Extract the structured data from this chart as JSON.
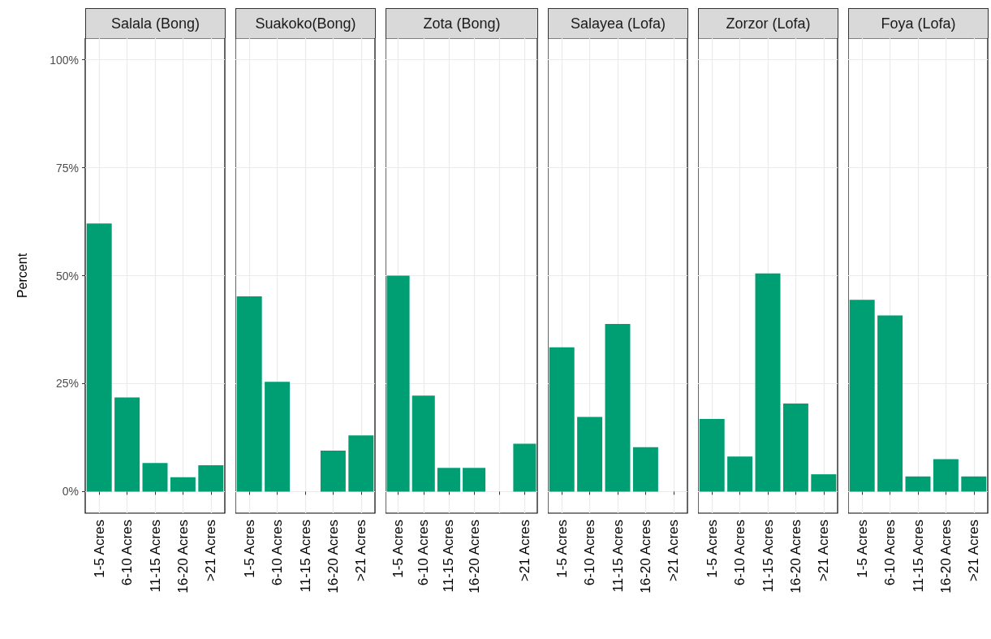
{
  "chart_data": [
    {
      "type": "bar",
      "title": "Salala (Bong)",
      "ylabel": "Percent",
      "categories": [
        "1-5 Acres",
        "6-10 Acres",
        "11-15 Acres",
        "16-20 Acres",
        ">21 Acres"
      ],
      "values": [
        62.1,
        21.8,
        6.6,
        3.3,
        6.1
      ],
      "color": "#009e73",
      "ylim": [
        -5,
        105
      ],
      "yticks": [
        {
          "value": 0,
          "label": "0%"
        },
        {
          "value": 25,
          "label": "25%"
        },
        {
          "value": 50,
          "label": "50%"
        },
        {
          "value": 75,
          "label": "75%"
        },
        {
          "value": 100,
          "label": "100%"
        }
      ],
      "grid": true
    },
    {
      "type": "bar",
      "title": "Suakoko(Bong)",
      "categories": [
        "1-5 Acres",
        "6-10 Acres",
        "11-15 Acres",
        "16-20 Acres",
        ">21 Acres"
      ],
      "values": [
        45.2,
        25.4,
        0,
        9.5,
        13.0
      ],
      "color": "#009e73",
      "ylim": [
        -5,
        105
      ],
      "yticks": [
        0,
        25,
        50,
        75,
        100
      ],
      "grid": true,
      "tick_labels": "x"
    },
    {
      "type": "bar",
      "title": "Zota (Bong)",
      "categories": [
        "1-5 Acres",
        "6-10 Acres",
        "11-15 Acres",
        "16-20 Acres",
        null,
        ">21 Acres"
      ],
      "values": [
        50.0,
        22.2,
        5.5,
        5.5,
        null,
        11.1
      ],
      "color": "#009e73",
      "ylim": [
        -5,
        105
      ],
      "yticks": [
        0,
        25,
        50,
        75,
        100
      ],
      "grid": true,
      "tick_labels": "x"
    },
    {
      "type": "bar",
      "title": "Salayea (Lofa)",
      "categories": [
        "1-5 Acres",
        "6-10 Acres",
        "11-15 Acres",
        "16-20 Acres",
        ">21 Acres"
      ],
      "values": [
        33.4,
        17.3,
        38.8,
        10.3,
        0
      ],
      "color": "#009e73",
      "ylim": [
        -5,
        105
      ],
      "yticks": [
        0,
        25,
        50,
        75,
        100
      ],
      "grid": true,
      "tick_labels": "x"
    },
    {
      "type": "bar",
      "title": "Zorzor (Lofa)",
      "categories": [
        "1-5 Acres",
        "6-10 Acres",
        "11-15 Acres",
        "16-20 Acres",
        ">21 Acres"
      ],
      "values": [
        16.8,
        8.1,
        50.5,
        20.4,
        4.0
      ],
      "color": "#009e73",
      "ylim": [
        -5,
        105
      ],
      "yticks": [
        0,
        25,
        50,
        75,
        100
      ],
      "grid": true,
      "tick_labels": "x"
    },
    {
      "type": "bar",
      "title": "Foya (Lofa)",
      "categories": [
        "1-5 Acres",
        "6-10 Acres",
        "11-15 Acres",
        "16-20 Acres",
        ">21 Acres"
      ],
      "values": [
        44.4,
        40.8,
        3.5,
        7.5,
        3.5
      ],
      "color": "#009e73",
      "ylim": [
        -5,
        105
      ],
      "yticks": [
        0,
        25,
        50,
        75,
        100
      ],
      "grid": true,
      "tick_labels": "x"
    }
  ]
}
